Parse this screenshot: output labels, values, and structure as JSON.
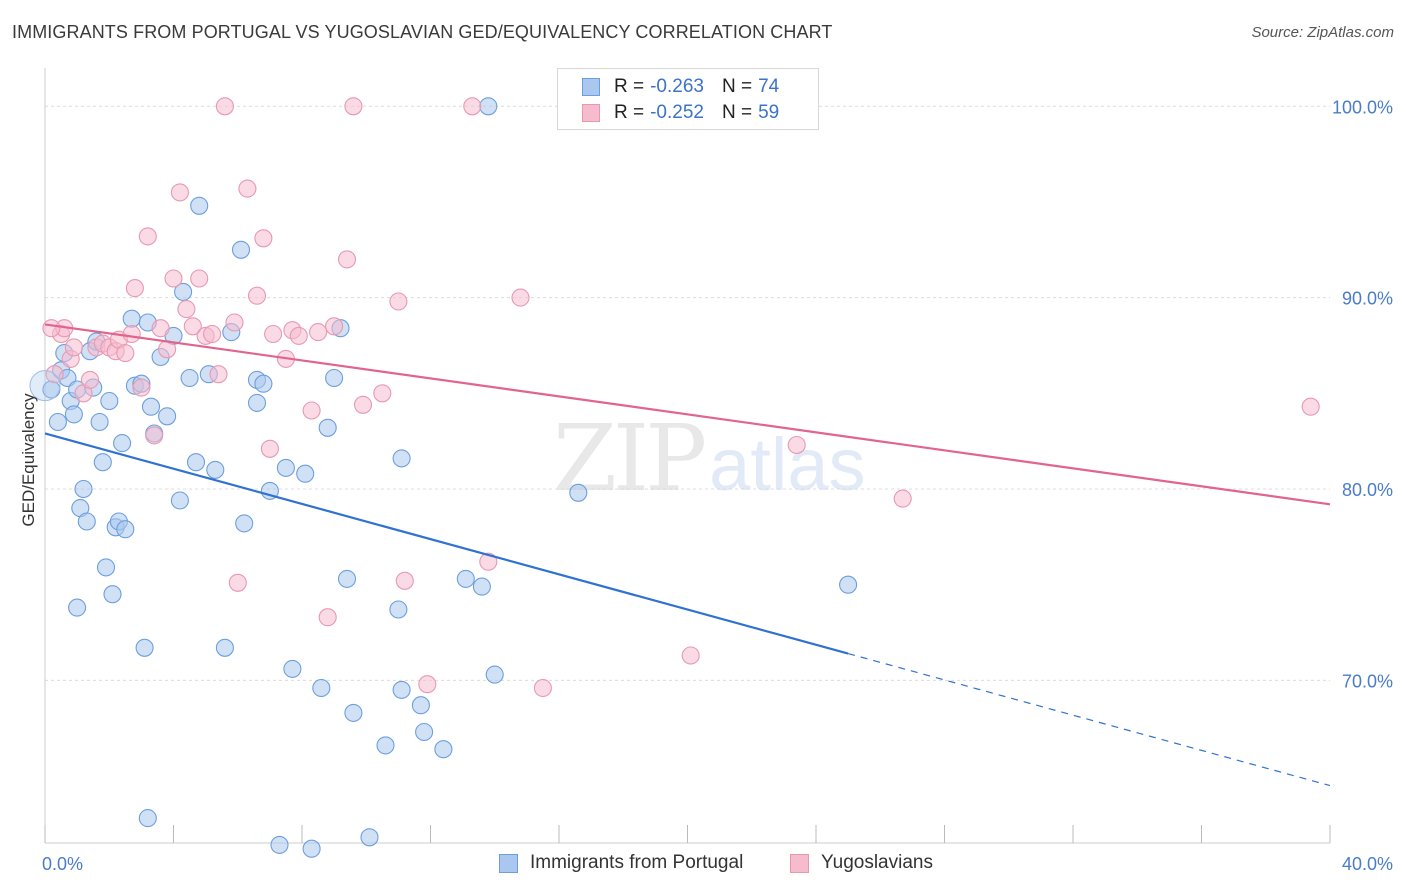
{
  "title": "IMMIGRANTS FROM PORTUGAL VS YUGOSLAVIAN GED/EQUIVALENCY CORRELATION CHART",
  "source": "Source: ZipAtlas.com",
  "watermark": {
    "zip": "ZIP",
    "atlas": "atlas"
  },
  "stats": [
    {
      "swatch_color": "#aac8ef",
      "r_label": "R =",
      "r_value": "-0.263",
      "n_label": "N =",
      "n_value": "74"
    },
    {
      "swatch_color": "#f6bccd",
      "r_label": "R =",
      "r_value": "-0.252",
      "n_label": "N =",
      "n_value": "59"
    }
  ],
  "legend": [
    {
      "label": "Immigrants from Portugal",
      "color": "#aac8ef"
    },
    {
      "label": "Yugoslavians",
      "color": "#f6bccd"
    }
  ],
  "chart_data": {
    "type": "scatter",
    "title": "IMMIGRANTS FROM PORTUGAL VS YUGOSLAVIAN GED/EQUIVALENCY CORRELATION CHART",
    "xlabel": "",
    "ylabel": "GED/Equivalency",
    "xlim": [
      0,
      40
    ],
    "ylim": [
      61.5,
      102
    ],
    "x_tick_labels": [
      {
        "value": 0,
        "label": "0.0%"
      },
      {
        "value": 40,
        "label": "40.0%"
      }
    ],
    "y_tick_labels": [
      {
        "value": 70,
        "label": "70.0%"
      },
      {
        "value": 80,
        "label": "80.0%"
      },
      {
        "value": 90,
        "label": "90.0%"
      },
      {
        "value": 100,
        "label": "100.0%"
      }
    ],
    "x_minor_ticks": [
      0,
      4,
      8,
      12,
      16,
      20,
      24,
      28,
      32,
      36,
      40
    ],
    "grid": true,
    "legend_position": "bottom-center",
    "series": [
      {
        "name": "Immigrants from Portugal",
        "color": "#aac8ef",
        "stroke": "#6d9fdc",
        "line_color": "#2f72d0",
        "trend": {
          "x0": 0,
          "y0": 82.9,
          "x1": 25.0,
          "y1": 71.4,
          "dash_to_x": 40,
          "dash_to_y": 64.5
        },
        "points": [
          [
            0.2,
            85.2
          ],
          [
            0.5,
            86.2
          ],
          [
            0.6,
            87.1
          ],
          [
            0.7,
            85.8
          ],
          [
            0.8,
            84.6
          ],
          [
            0.9,
            83.9
          ],
          [
            1.0,
            85.2
          ],
          [
            1.1,
            79.0
          ],
          [
            1.2,
            80.0
          ],
          [
            1.3,
            78.3
          ],
          [
            1.4,
            87.2
          ],
          [
            1.5,
            85.3
          ],
          [
            1.6,
            87.7
          ],
          [
            1.7,
            83.5
          ],
          [
            1.8,
            81.4
          ],
          [
            1.9,
            75.9
          ],
          [
            2.0,
            84.6
          ],
          [
            2.1,
            74.5
          ],
          [
            2.2,
            78.0
          ],
          [
            2.3,
            78.3
          ],
          [
            2.4,
            82.4
          ],
          [
            2.5,
            77.9
          ],
          [
            2.7,
            88.9
          ],
          [
            2.8,
            85.4
          ],
          [
            3.0,
            85.5
          ],
          [
            3.1,
            71.7
          ],
          [
            3.2,
            88.7
          ],
          [
            3.3,
            84.3
          ],
          [
            3.4,
            82.9
          ],
          [
            3.6,
            86.9
          ],
          [
            3.8,
            83.8
          ],
          [
            4.0,
            88.0
          ],
          [
            4.2,
            79.4
          ],
          [
            4.3,
            90.3
          ],
          [
            4.5,
            85.8
          ],
          [
            4.7,
            81.4
          ],
          [
            4.8,
            94.8
          ],
          [
            5.1,
            86.0
          ],
          [
            5.3,
            81.0
          ],
          [
            5.6,
            71.7
          ],
          [
            5.8,
            88.2
          ],
          [
            6.1,
            92.5
          ],
          [
            6.2,
            78.2
          ],
          [
            6.6,
            84.5
          ],
          [
            6.6,
            85.7
          ],
          [
            6.8,
            85.5
          ],
          [
            7.0,
            79.9
          ],
          [
            7.3,
            61.4
          ],
          [
            7.5,
            81.1
          ],
          [
            7.7,
            70.6
          ],
          [
            8.1,
            80.8
          ],
          [
            8.3,
            61.2
          ],
          [
            8.6,
            69.6
          ],
          [
            8.8,
            83.2
          ],
          [
            9.0,
            85.8
          ],
          [
            9.2,
            88.4
          ],
          [
            9.4,
            75.3
          ],
          [
            9.6,
            68.3
          ],
          [
            10.1,
            61.8
          ],
          [
            10.6,
            66.6
          ],
          [
            11.0,
            73.7
          ],
          [
            11.1,
            81.6
          ],
          [
            11.1,
            69.5
          ],
          [
            11.7,
            68.7
          ],
          [
            11.8,
            67.3
          ],
          [
            12.4,
            66.4
          ],
          [
            13.1,
            75.3
          ],
          [
            13.6,
            74.9
          ],
          [
            13.8,
            100.0
          ],
          [
            14.0,
            70.3
          ],
          [
            0.4,
            83.5
          ],
          [
            1.0,
            73.8
          ],
          [
            3.2,
            62.8
          ],
          [
            16.6,
            79.8
          ],
          [
            25.0,
            75.0
          ]
        ]
      },
      {
        "name": "Yugoslavians",
        "color": "#f6bccd",
        "stroke": "#e899b2",
        "line_color": "#e2648e",
        "trend": {
          "x0": 0,
          "y0": 88.6,
          "x1": 40,
          "y1": 79.2
        },
        "points": [
          [
            0.3,
            86.0
          ],
          [
            0.5,
            88.1
          ],
          [
            0.6,
            88.4
          ],
          [
            0.8,
            86.8
          ],
          [
            0.9,
            87.4
          ],
          [
            1.2,
            85.0
          ],
          [
            1.4,
            85.7
          ],
          [
            1.6,
            87.4
          ],
          [
            1.8,
            87.6
          ],
          [
            2.0,
            87.4
          ],
          [
            2.2,
            87.2
          ],
          [
            2.3,
            87.8
          ],
          [
            2.5,
            87.1
          ],
          [
            2.7,
            88.1
          ],
          [
            2.8,
            90.5
          ],
          [
            3.0,
            85.3
          ],
          [
            3.2,
            93.2
          ],
          [
            3.4,
            82.8
          ],
          [
            3.6,
            88.4
          ],
          [
            3.8,
            87.3
          ],
          [
            4.0,
            91.0
          ],
          [
            4.2,
            95.5
          ],
          [
            4.4,
            89.4
          ],
          [
            4.6,
            88.5
          ],
          [
            4.8,
            91.0
          ],
          [
            5.0,
            88.0
          ],
          [
            5.2,
            88.1
          ],
          [
            5.4,
            86.0
          ],
          [
            5.6,
            100.0
          ],
          [
            5.9,
            88.7
          ],
          [
            6.0,
            75.1
          ],
          [
            6.3,
            95.7
          ],
          [
            6.6,
            90.1
          ],
          [
            6.8,
            93.1
          ],
          [
            7.0,
            82.1
          ],
          [
            7.1,
            88.1
          ],
          [
            7.5,
            86.8
          ],
          [
            7.7,
            88.3
          ],
          [
            7.9,
            88.0
          ],
          [
            8.3,
            84.1
          ],
          [
            8.5,
            88.2
          ],
          [
            8.8,
            73.3
          ],
          [
            9.0,
            88.5
          ],
          [
            9.4,
            92.0
          ],
          [
            9.6,
            100.0
          ],
          [
            9.9,
            84.4
          ],
          [
            10.5,
            85.0
          ],
          [
            11.0,
            89.8
          ],
          [
            11.2,
            75.2
          ],
          [
            11.9,
            69.8
          ],
          [
            13.3,
            100.0
          ],
          [
            13.8,
            76.2
          ],
          [
            14.8,
            90.0
          ],
          [
            15.5,
            69.6
          ],
          [
            20.1,
            71.3
          ],
          [
            23.4,
            82.3
          ],
          [
            26.7,
            79.5
          ],
          [
            39.4,
            84.3
          ],
          [
            0.2,
            88.4
          ]
        ]
      }
    ]
  }
}
